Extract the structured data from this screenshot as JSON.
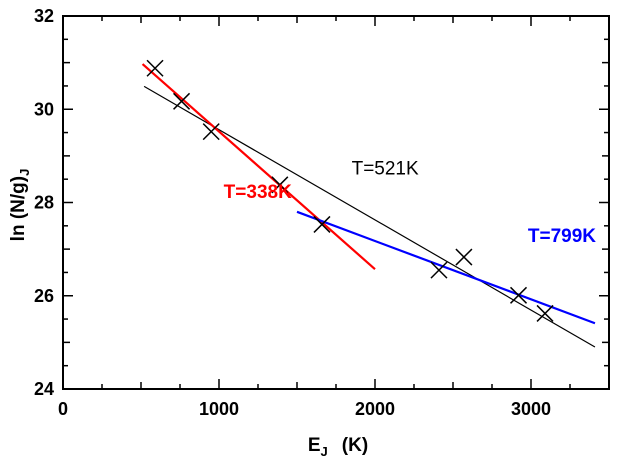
{
  "chart_data": {
    "type": "scatter",
    "xlabel": "E",
    "xlabel_sub": "J",
    "xlabel_unit": "(K)",
    "ylabel": "ln (N/g)",
    "ylabel_sub": "J",
    "xlim": [
      0,
      3500
    ],
    "ylim": [
      24,
      32
    ],
    "xticks": [
      0,
      1000,
      2000,
      3000
    ],
    "yticks": [
      24,
      26,
      28,
      30,
      32
    ],
    "grid": false,
    "points": [
      {
        "x": 590,
        "y": 30.88
      },
      {
        "x": 760,
        "y": 30.17
      },
      {
        "x": 950,
        "y": 29.52
      },
      {
        "x": 1390,
        "y": 28.38
      },
      {
        "x": 1660,
        "y": 27.53
      },
      {
        "x": 2410,
        "y": 26.55
      },
      {
        "x": 2570,
        "y": 26.83
      },
      {
        "x": 2920,
        "y": 26.01
      },
      {
        "x": 3090,
        "y": 25.62
      }
    ],
    "fits": [
      {
        "label": "T=521K",
        "color": "#000000",
        "x": [
          520,
          3410
        ],
        "y": [
          30.49,
          24.9
        ],
        "label_x": 1850,
        "label_y": 28.6
      },
      {
        "label": "T=338K",
        "color": "#ff0000",
        "x": [
          510,
          2000
        ],
        "y": [
          30.97,
          26.57
        ],
        "label_x": 1030,
        "label_y": 28.1
      },
      {
        "label": "T=799K",
        "color": "#0000ff",
        "x": [
          1500,
          3410
        ],
        "y": [
          27.8,
          25.41
        ],
        "label_x": 2980,
        "label_y": 27.15
      }
    ]
  }
}
